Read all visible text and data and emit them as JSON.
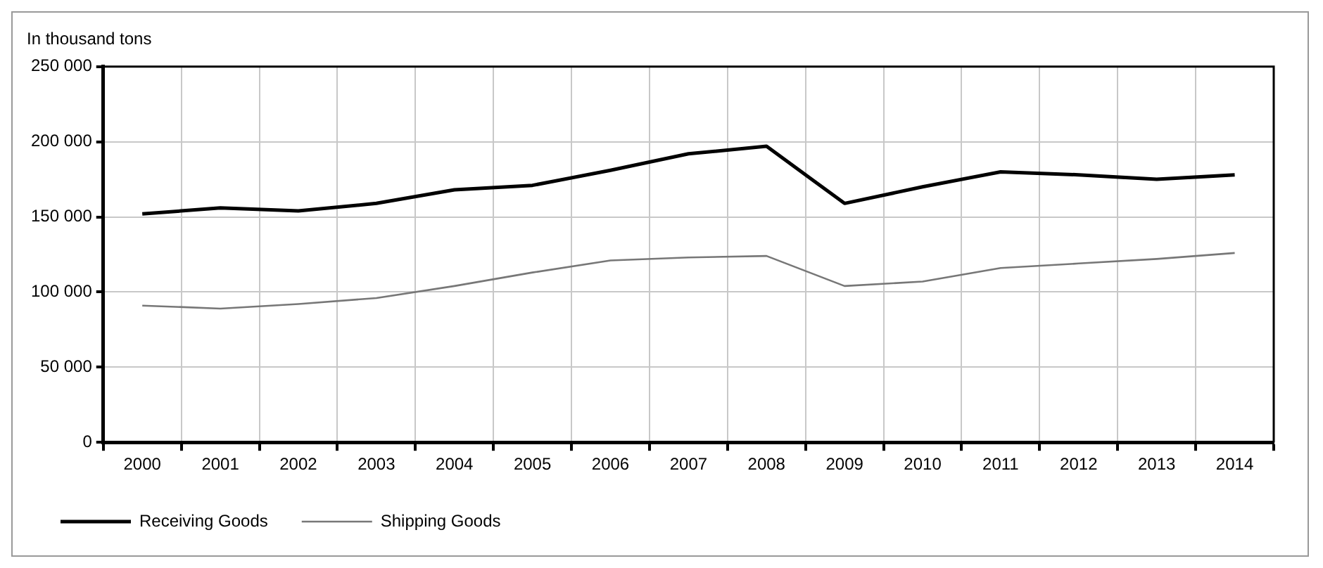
{
  "chart_data": {
    "type": "line",
    "ylabel": "In thousand tons",
    "categories": [
      "2000",
      "2001",
      "2002",
      "2003",
      "2004",
      "2005",
      "2006",
      "2007",
      "2008",
      "2009",
      "2010",
      "2011",
      "2012",
      "2013",
      "2014"
    ],
    "series": [
      {
        "name": "Receiving Goods",
        "color": "#000000",
        "values": [
          152000,
          156000,
          154000,
          159000,
          168000,
          171000,
          181000,
          192000,
          197000,
          159000,
          170000,
          180000,
          178000,
          175000,
          178000
        ]
      },
      {
        "name": "Shipping Goods",
        "color": "#777777",
        "values": [
          91000,
          89000,
          92000,
          96000,
          104000,
          113000,
          121000,
          123000,
          124000,
          104000,
          107000,
          116000,
          119000,
          122000,
          126000
        ]
      }
    ],
    "ylim": [
      0,
      250000
    ],
    "yticks": [
      0,
      {
        "value": 50000,
        "label": "50 000"
      },
      {
        "value": 100000,
        "label": "100 000"
      },
      {
        "value": 150000,
        "label": "150 000"
      },
      {
        "value": 200000,
        "label": "200 000"
      },
      {
        "value": 250000,
        "label": "250 000"
      }
    ],
    "grid": true,
    "legend": "bottom",
    "marker": "none",
    "line_style": "solid"
  }
}
